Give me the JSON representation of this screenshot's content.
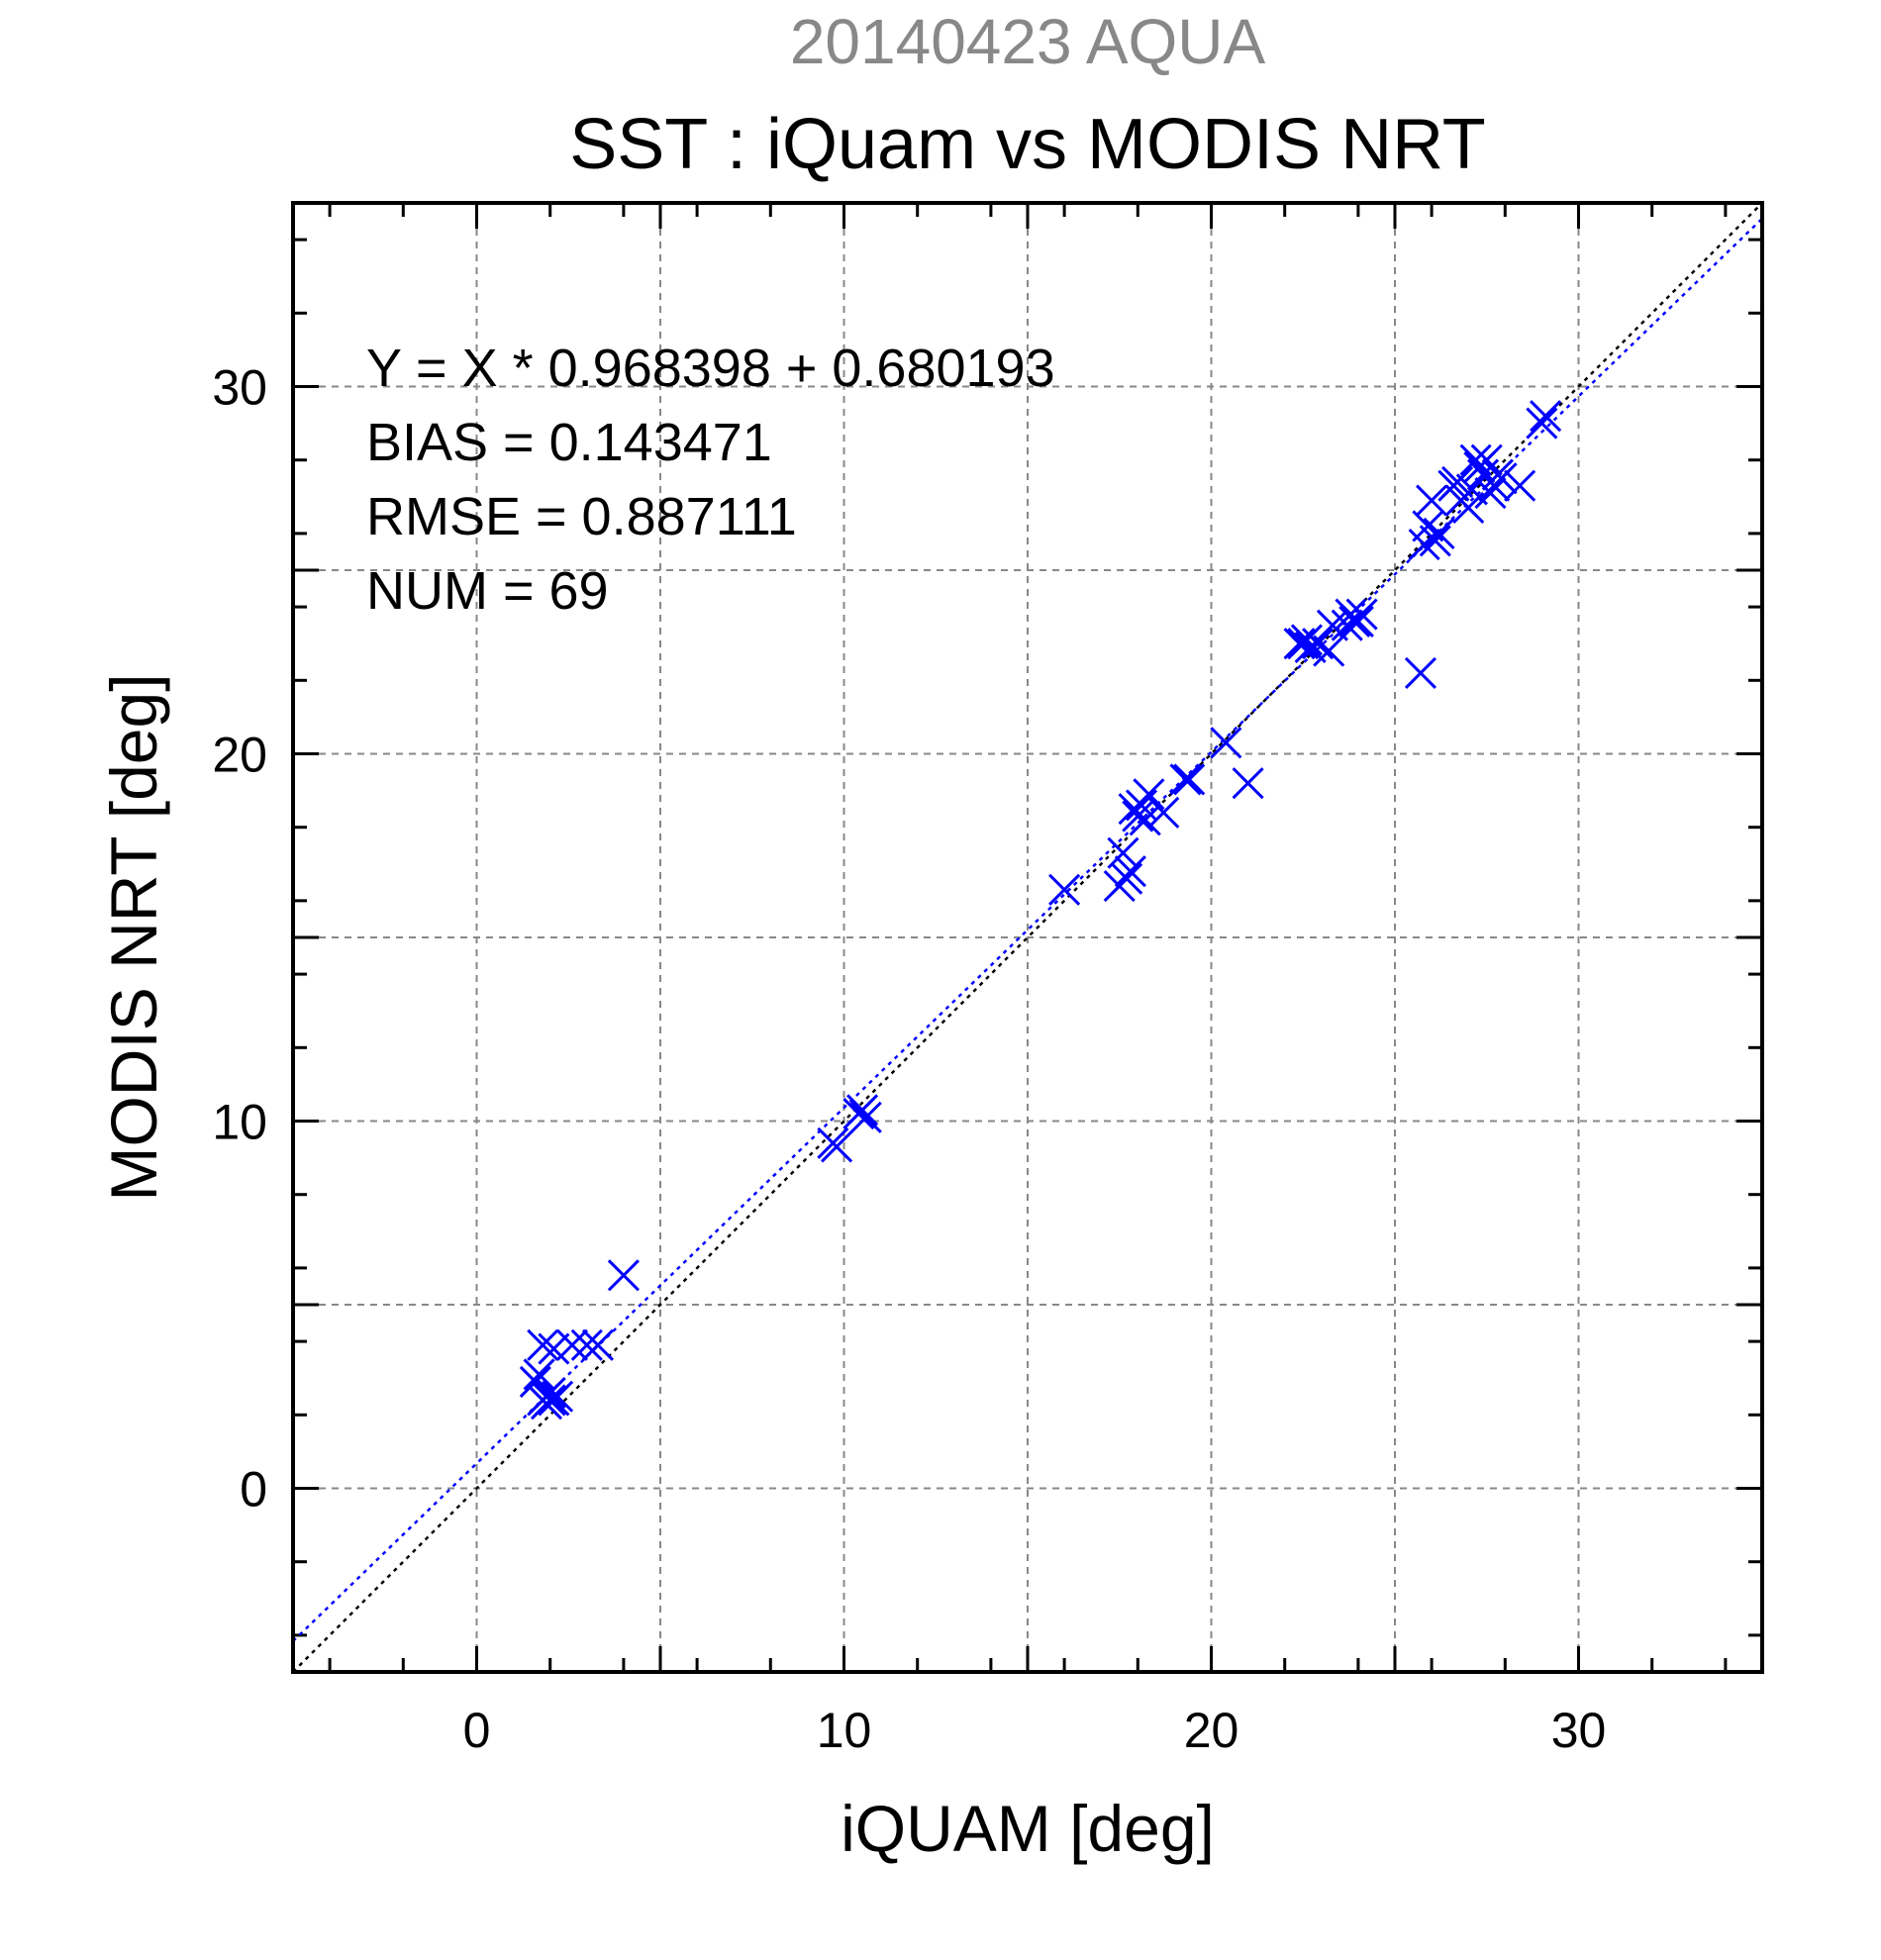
{
  "chart_data": {
    "type": "scatter",
    "subtitle": "20140423 AQUA",
    "title": "SST : iQuam vs MODIS NRT",
    "xlabel": "iQUAM [deg]",
    "ylabel": "MODIS NRT [deg]",
    "xlim": [
      -5,
      35
    ],
    "ylim": [
      -5,
      35
    ],
    "xticks": [
      0,
      10,
      20,
      30
    ],
    "yticks": [
      0,
      10,
      20,
      30
    ],
    "grid": true,
    "annotations": [
      "Y = X * 0.968398 + 0.680193",
      "BIAS = 0.143471",
      "RMSE = 0.887111",
      "NUM = 69"
    ],
    "regression": {
      "slope": 0.968398,
      "intercept": 0.680193
    },
    "colors": {
      "points": "#0000ff",
      "fit_line": "#0000ff",
      "identity_line": "#000000",
      "grid": "#888888"
    },
    "series": [
      {
        "marker": "x",
        "points": [
          [
            1.6,
            2.9
          ],
          [
            1.7,
            3.1
          ],
          [
            1.8,
            2.4
          ],
          [
            1.8,
            3.9
          ],
          [
            1.9,
            2.3
          ],
          [
            1.9,
            2.5
          ],
          [
            2.0,
            2.4
          ],
          [
            2.0,
            2.6
          ],
          [
            2.1,
            2.4
          ],
          [
            2.1,
            3.8
          ],
          [
            2.2,
            2.5
          ],
          [
            2.6,
            3.9
          ],
          [
            3.0,
            3.9
          ],
          [
            3.3,
            3.9
          ],
          [
            4.0,
            5.8
          ],
          [
            9.7,
            9.4
          ],
          [
            9.8,
            9.3
          ],
          [
            10.4,
            10.2
          ],
          [
            10.5,
            10.3
          ],
          [
            10.6,
            10.1
          ],
          [
            16.0,
            16.3
          ],
          [
            17.5,
            16.4
          ],
          [
            17.6,
            17.3
          ],
          [
            17.7,
            16.6
          ],
          [
            17.8,
            16.8
          ],
          [
            17.9,
            18.5
          ],
          [
            18.0,
            18.3
          ],
          [
            18.1,
            18.6
          ],
          [
            18.2,
            18.2
          ],
          [
            18.3,
            18.9
          ],
          [
            18.7,
            18.4
          ],
          [
            19.3,
            19.3
          ],
          [
            19.4,
            19.3
          ],
          [
            20.4,
            20.3
          ],
          [
            21.0,
            19.2
          ],
          [
            22.4,
            23.0
          ],
          [
            22.5,
            23.0
          ],
          [
            22.7,
            22.9
          ],
          [
            22.9,
            23.0
          ],
          [
            23.2,
            22.8
          ],
          [
            23.3,
            23.5
          ],
          [
            23.7,
            23.5
          ],
          [
            23.8,
            23.8
          ],
          [
            23.9,
            23.6
          ],
          [
            24.0,
            23.6
          ],
          [
            24.1,
            23.8
          ],
          [
            25.7,
            22.2
          ],
          [
            25.8,
            25.7
          ],
          [
            25.9,
            26.2
          ],
          [
            26.0,
            26.9
          ],
          [
            26.1,
            25.8
          ],
          [
            26.2,
            26.0
          ],
          [
            26.6,
            27.3
          ],
          [
            26.7,
            27.4
          ],
          [
            26.8,
            26.9
          ],
          [
            27.0,
            26.7
          ],
          [
            27.1,
            27.2
          ],
          [
            27.2,
            28.0
          ],
          [
            27.3,
            27.8
          ],
          [
            27.4,
            27.6
          ],
          [
            27.5,
            28.0
          ],
          [
            27.6,
            27.1
          ],
          [
            27.7,
            27.3
          ],
          [
            27.8,
            27.6
          ],
          [
            27.9,
            27.5
          ],
          [
            28.4,
            27.3
          ],
          [
            29.0,
            29.0
          ],
          [
            29.1,
            29.2
          ],
          [
            22.6,
            23.1
          ]
        ]
      }
    ]
  }
}
